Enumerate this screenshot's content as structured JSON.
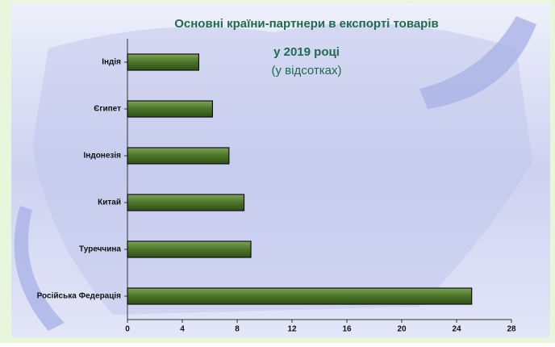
{
  "chart_data": {
    "type": "bar",
    "orientation": "horizontal",
    "title": [
      "Основні країни-партнери в експорті товарів",
      "у 2019 році"
    ],
    "subtitle": "(у відсотках)",
    "categories": [
      "Індія",
      "Єгипет",
      "Індонезія",
      "Китай",
      "Туреччина",
      "Російська Федерація"
    ],
    "values": [
      5.2,
      6.2,
      7.4,
      8.5,
      9.0,
      25.1
    ],
    "color": "#4f7a2a",
    "xlim": [
      0,
      28
    ],
    "xticks": [
      0,
      4,
      8,
      12,
      16,
      20,
      24,
      28
    ],
    "grid": false
  }
}
